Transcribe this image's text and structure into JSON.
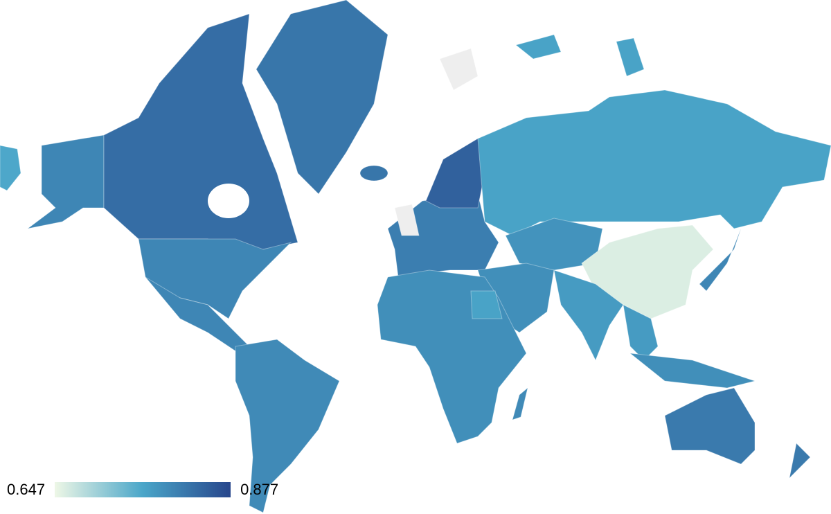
{
  "legend": {
    "min_label": "0.647",
    "max_label": "0.877",
    "min": 0.647,
    "max": 0.877,
    "colors": [
      "#eef7e6",
      "#4aa6c9",
      "#27468c"
    ]
  },
  "no_data_color": "#eeeeee",
  "regions": [
    {
      "name": "alaska-west",
      "value": 0.76
    },
    {
      "name": "alaska",
      "value": 0.8
    },
    {
      "name": "canada",
      "value": 0.83
    },
    {
      "name": "greenland",
      "value": 0.82
    },
    {
      "name": "usa",
      "value": 0.8
    },
    {
      "name": "mexico-central-america",
      "value": 0.8
    },
    {
      "name": "south-america",
      "value": 0.795
    },
    {
      "name": "europe",
      "value": 0.81
    },
    {
      "name": "scandinavia",
      "value": 0.845
    },
    {
      "name": "iceland",
      "value": 0.82
    },
    {
      "name": "russia",
      "value": 0.765
    },
    {
      "name": "central-asia",
      "value": 0.785
    },
    {
      "name": "china",
      "value": 0.66
    },
    {
      "name": "middle-east",
      "value": 0.79
    },
    {
      "name": "india",
      "value": 0.775
    },
    {
      "name": "southeast-asia",
      "value": 0.775
    },
    {
      "name": "indonesia",
      "value": 0.79
    },
    {
      "name": "japan",
      "value": 0.8
    },
    {
      "name": "africa",
      "value": 0.79
    },
    {
      "name": "egypt",
      "value": 0.765
    },
    {
      "name": "madagascar",
      "value": 0.795
    },
    {
      "name": "australia",
      "value": 0.815
    },
    {
      "name": "new-zealand",
      "value": 0.815
    },
    {
      "name": "arctic-islands",
      "value": 0.765
    },
    {
      "name": "uk",
      "value": null
    },
    {
      "name": "svalbard",
      "value": null
    }
  ]
}
